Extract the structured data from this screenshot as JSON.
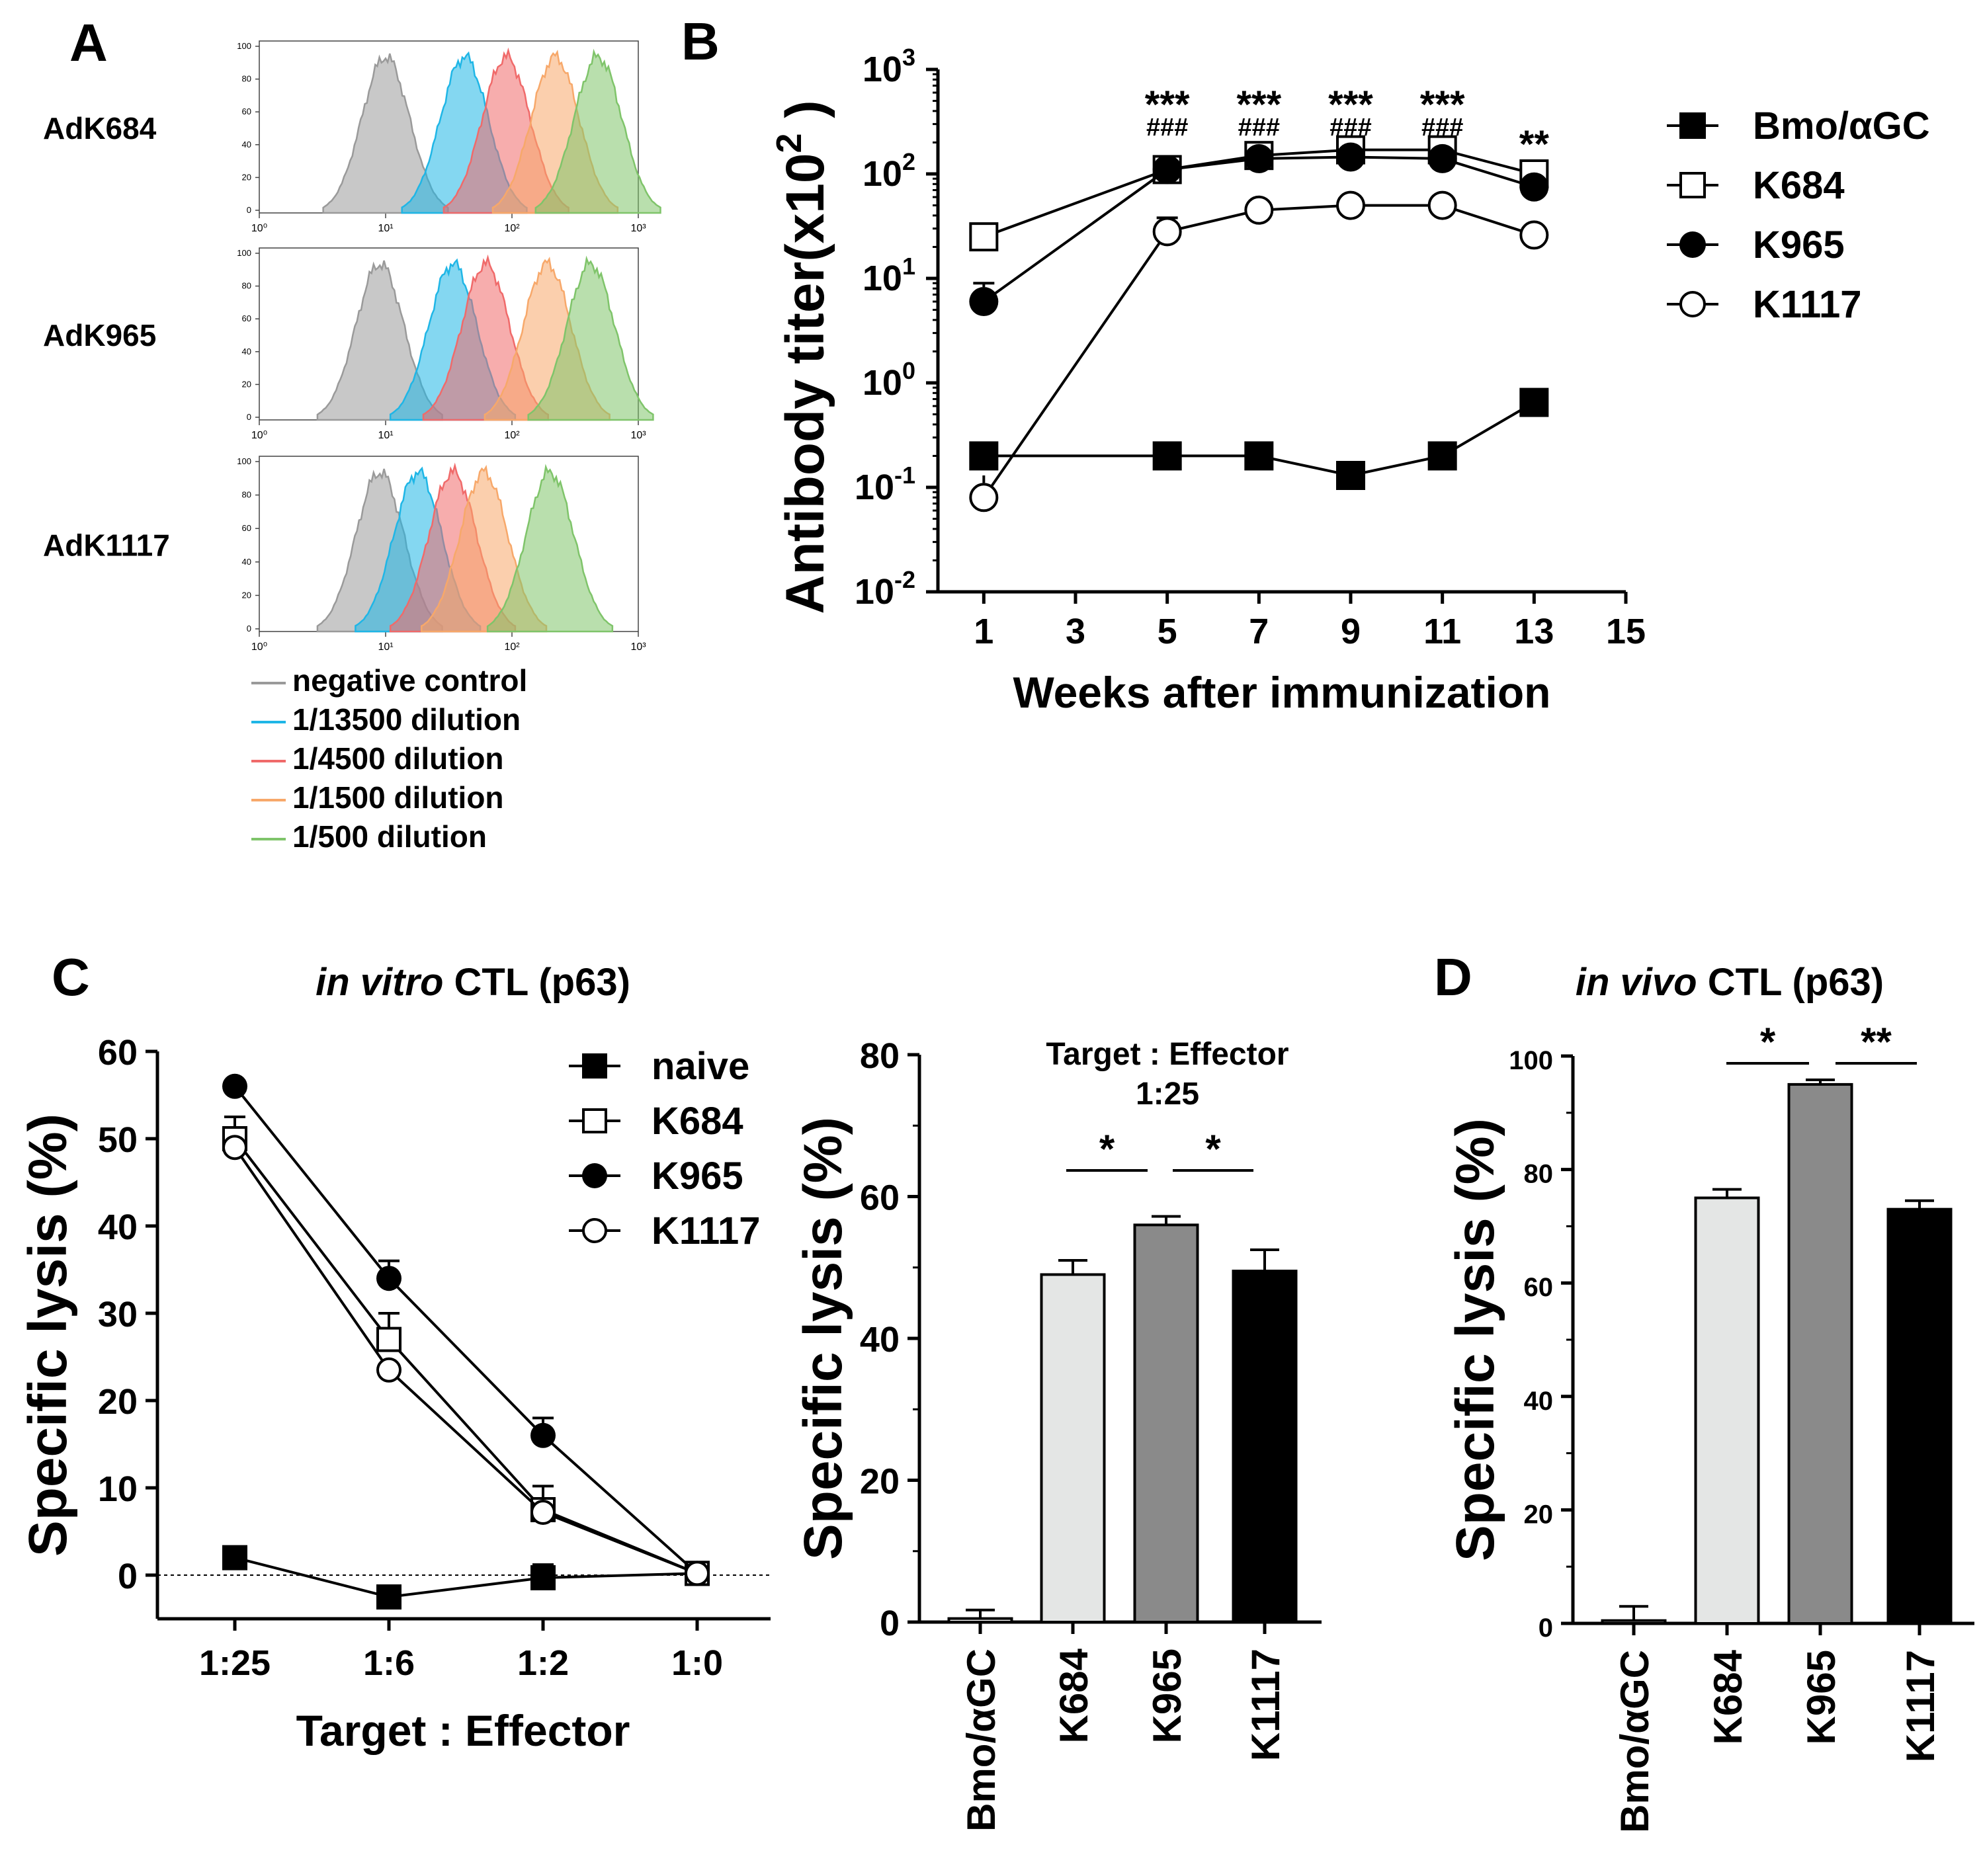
{
  "chart_data": [
    {
      "id": "A",
      "type": "area",
      "panel_label": "A",
      "description_free": true,
      "x_scale": "log",
      "xlim": [
        1,
        1000
      ],
      "ylim": [
        0,
        100
      ],
      "y_ticks": [
        "100",
        "80",
        "60",
        "40",
        "20",
        "0"
      ],
      "x_ticks": [
        "10⁰",
        "10¹",
        "10²",
        "10³"
      ],
      "rows": [
        {
          "label": "AdK684",
          "peaks": [
            10,
            42,
            90,
            220,
            480
          ]
        },
        {
          "label": "AdK965",
          "peaks": [
            9,
            34,
            62,
            190,
            420
          ]
        },
        {
          "label": "AdK1117",
          "peaks": [
            9,
            18,
            34,
            60,
            200
          ]
        }
      ],
      "legend": [
        {
          "name": "negative control",
          "color": "#9a9a9a"
        },
        {
          "name": "1/13500 dilution",
          "color": "#1fb6e6"
        },
        {
          "name": "1/4500 dilution",
          "color": "#f06a6a"
        },
        {
          "name": "1/1500 dilution",
          "color": "#f7a86a"
        },
        {
          "name": "1/500 dilution",
          "color": "#7fc46a"
        }
      ]
    },
    {
      "id": "B",
      "type": "line",
      "panel_label": "B",
      "ylabel": "Antibody titer(x10",
      "ylabel_sup": "2",
      "ylabel_end": " )",
      "xlabel": "Weeks after immunization",
      "y_scale": "log",
      "ylim": [
        0.01,
        1000
      ],
      "y_ticks": [
        {
          "base": "10",
          "exp": "3"
        },
        {
          "base": "10",
          "exp": "2"
        },
        {
          "base": "10",
          "exp": "1"
        },
        {
          "base": "10",
          "exp": "0"
        },
        {
          "base": "10",
          "exp": "-1"
        },
        {
          "base": "10",
          "exp": "-2"
        }
      ],
      "x": [
        1,
        5,
        7,
        9,
        11,
        13
      ],
      "x_ticks": [
        "1",
        "3",
        "5",
        "7",
        "9",
        "11",
        "13",
        "15"
      ],
      "xlim": [
        0,
        15
      ],
      "series": [
        {
          "name": "Bmo/αGC",
          "marker": "square-filled",
          "values": [
            0.2,
            0.2,
            0.2,
            0.13,
            0.2,
            0.65
          ]
        },
        {
          "name": "K684",
          "marker": "square-open",
          "values": [
            25,
            110,
            150,
            170,
            170,
            100
          ]
        },
        {
          "name": "K965",
          "marker": "circle-filled",
          "values": [
            6,
            110,
            140,
            145,
            140,
            75
          ]
        },
        {
          "name": "K1117",
          "marker": "circle-open",
          "values": [
            0.08,
            28,
            45,
            50,
            50,
            26
          ]
        }
      ],
      "annotations": [
        {
          "x": 5,
          "star": "***",
          "hash": "###"
        },
        {
          "x": 7,
          "star": "***",
          "hash": "###"
        },
        {
          "x": 9,
          "star": "***",
          "hash": "###"
        },
        {
          "x": 11,
          "star": "***",
          "hash": "###"
        },
        {
          "x": 13,
          "star": "**",
          "hash": ""
        }
      ]
    },
    {
      "id": "C1",
      "type": "line",
      "panel_label": "C",
      "title_italic": "in vitro",
      "title_rest": " CTL (p63)",
      "ylabel": "Specific lysis (%)",
      "xlabel": "Target : Effector",
      "categories": [
        "1:25",
        "1:6",
        "1:2",
        "1:0"
      ],
      "ylim": [
        -5,
        60
      ],
      "y_ticks": [
        "60",
        "50",
        "40",
        "30",
        "20",
        "10",
        "0"
      ],
      "series": [
        {
          "name": "naive",
          "marker": "square-filled",
          "values": [
            2,
            -2.5,
            -0.3,
            0.2
          ]
        },
        {
          "name": "K684",
          "marker": "square-open",
          "values": [
            50,
            27,
            7.5,
            0.2
          ]
        },
        {
          "name": "K965",
          "marker": "circle-filled",
          "values": [
            56,
            34,
            16,
            0.2
          ]
        },
        {
          "name": "K1117",
          "marker": "circle-open",
          "values": [
            49,
            23.5,
            7.2,
            0.2
          ]
        }
      ]
    },
    {
      "id": "C2",
      "type": "bar",
      "title_line1": "Target : Effector",
      "title_line2": "1:25",
      "ylabel": "Specific lysis (%)",
      "categories": [
        "Bmo/αGC",
        "K684",
        "K965",
        "K1117"
      ],
      "values": [
        0.5,
        49,
        56,
        49.5
      ],
      "errors": [
        1.2,
        2,
        1.2,
        3
      ],
      "colors": [
        "#ffffff",
        "#e4e6e5",
        "#8a8a8a",
        "#000000"
      ],
      "ylim": [
        0,
        80
      ],
      "y_ticks": [
        "80",
        "60",
        "40",
        "20",
        "0"
      ],
      "significance": [
        "*",
        "*"
      ]
    },
    {
      "id": "D",
      "type": "bar",
      "panel_label": "D",
      "title_italic": "in vivo",
      "title_rest": " CTL (p63)",
      "ylabel": "Specific lysis (%)",
      "categories": [
        "Bmo/αGC",
        "K684",
        "K965",
        "K1117"
      ],
      "values": [
        0.5,
        75,
        95,
        73
      ],
      "errors": [
        2.5,
        1.5,
        0.8,
        1.5
      ],
      "colors": [
        "#ffffff",
        "#e4e6e5",
        "#8a8a8a",
        "#000000"
      ],
      "ylim": [
        0,
        100
      ],
      "y_ticks": [
        "100",
        "80",
        "60",
        "40",
        "20",
        "0"
      ],
      "significance": [
        "*",
        "**"
      ]
    }
  ]
}
